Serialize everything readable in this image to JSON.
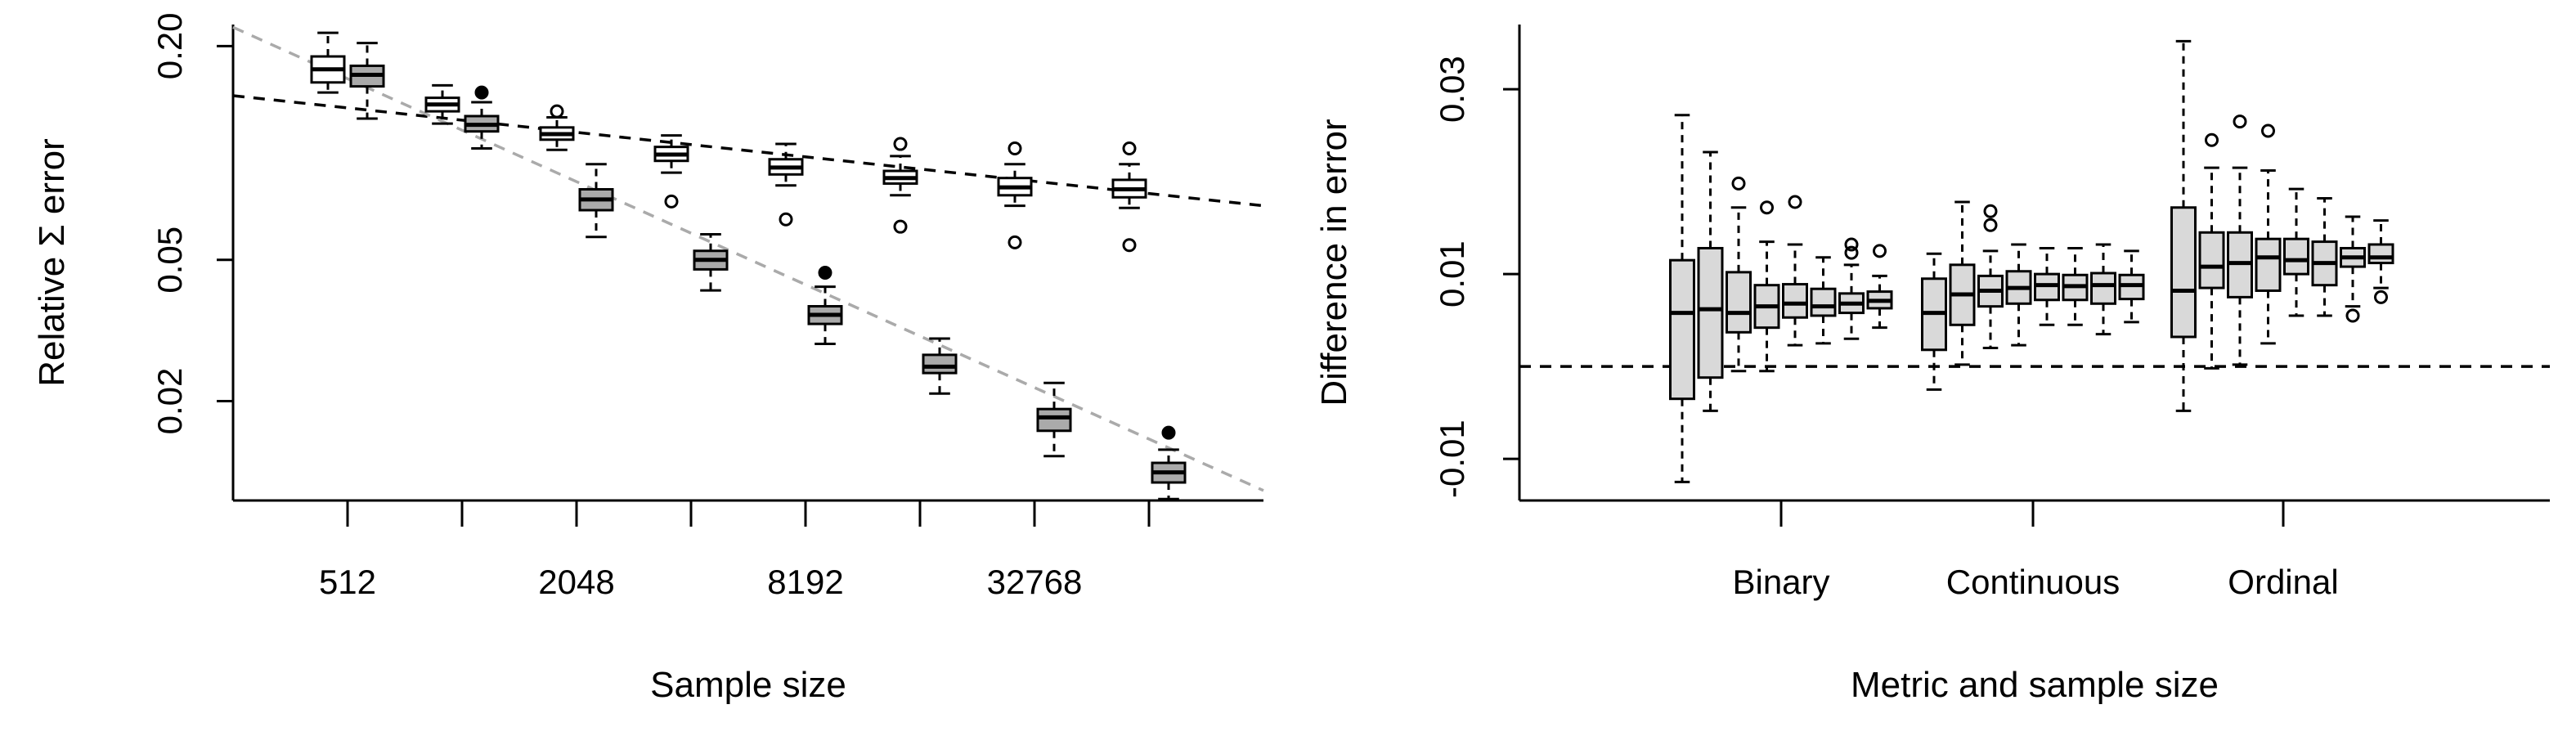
{
  "chart_data": [
    {
      "type": "box",
      "ylabel": "Relative Σ error",
      "xlabel": "Sample size",
      "y_scale": "log",
      "ylim": [
        0.0105,
        0.23
      ],
      "y_ticks": [
        0.02,
        0.05,
        0.2
      ],
      "y_tick_labels": [
        "0.02",
        "0.05",
        "0.20"
      ],
      "x_tick_labels": [
        "512",
        "2048",
        "8192",
        "32768"
      ],
      "x_tick_values": [
        512,
        2048,
        8192,
        32768
      ],
      "sample_sizes": [
        512,
        1024,
        2048,
        4096,
        8192,
        16384,
        32768,
        65536
      ],
      "trend_lines": [
        {
          "color": "#000000",
          "style": "dashed",
          "from": [
            256,
            0.145
          ],
          "to": [
            131072,
            0.071
          ]
        },
        {
          "color": "#aaaaaa",
          "style": "dashed",
          "from": [
            256,
            0.226
          ],
          "to": [
            131072,
            0.0112
          ]
        }
      ],
      "series": [
        {
          "fill": "#ffffff",
          "boxes": [
            {
              "wl": 0.148,
              "q1": 0.158,
              "med": 0.172,
              "q3": 0.187,
              "wh": 0.218,
              "out": []
            },
            {
              "wl": 0.121,
              "q1": 0.131,
              "med": 0.137,
              "q3": 0.143,
              "wh": 0.155,
              "out": []
            },
            {
              "wl": 0.102,
              "q1": 0.109,
              "med": 0.113,
              "q3": 0.118,
              "wh": 0.126,
              "out": [
                0.131
              ]
            },
            {
              "wl": 0.088,
              "q1": 0.095,
              "med": 0.099,
              "q3": 0.104,
              "wh": 0.112,
              "out": [
                0.073
              ]
            },
            {
              "wl": 0.081,
              "q1": 0.087,
              "med": 0.091,
              "q3": 0.096,
              "wh": 0.106,
              "out": [
                0.065
              ]
            },
            {
              "wl": 0.076,
              "q1": 0.082,
              "med": 0.085,
              "q3": 0.089,
              "wh": 0.098,
              "out": [
                0.106,
                0.062
              ]
            },
            {
              "wl": 0.071,
              "q1": 0.076,
              "med": 0.08,
              "q3": 0.085,
              "wh": 0.093,
              "out": [
                0.103,
                0.056
              ]
            },
            {
              "wl": 0.07,
              "q1": 0.075,
              "med": 0.079,
              "q3": 0.084,
              "wh": 0.093,
              "out": [
                0.103,
                0.055
              ]
            }
          ]
        },
        {
          "fill": "#aaaaaa",
          "boxes": [
            {
              "wl": 0.125,
              "q1": 0.154,
              "med": 0.166,
              "q3": 0.176,
              "wh": 0.204,
              "out": []
            },
            {
              "wl": 0.103,
              "q1": 0.115,
              "med": 0.12,
              "q3": 0.127,
              "wh": 0.139,
              "out": [
                0.148
              ]
            },
            {
              "wl": 0.058,
              "q1": 0.069,
              "med": 0.074,
              "q3": 0.079,
              "wh": 0.093,
              "out": []
            },
            {
              "wl": 0.041,
              "q1": 0.047,
              "med": 0.05,
              "q3": 0.053,
              "wh": 0.059,
              "out": []
            },
            {
              "wl": 0.029,
              "q1": 0.033,
              "med": 0.035,
              "q3": 0.037,
              "wh": 0.042,
              "out": [
                0.046
              ]
            },
            {
              "wl": 0.021,
              "q1": 0.024,
              "med": 0.025,
              "q3": 0.027,
              "wh": 0.03,
              "out": []
            },
            {
              "wl": 0.014,
              "q1": 0.0165,
              "med": 0.018,
              "q3": 0.019,
              "wh": 0.0225,
              "out": []
            },
            {
              "wl": 0.0106,
              "q1": 0.0118,
              "med": 0.0126,
              "q3": 0.0134,
              "wh": 0.0146,
              "out": [
                0.0163
              ]
            }
          ]
        }
      ]
    },
    {
      "type": "box",
      "ylabel": "Difference in error",
      "xlabel": "Metric and sample size",
      "ylim": [
        -0.0145,
        0.037
      ],
      "y_ticks": [
        -0.01,
        0.01,
        0.03
      ],
      "y_tick_labels": [
        "-0.01",
        "0.01",
        "0.03"
      ],
      "reference_line": 0.0,
      "groups": [
        {
          "name": "Binary",
          "fill": "#d9d9d9",
          "boxes": [
            {
              "wl": -0.0125,
              "q1": -0.0035,
              "med": 0.0058,
              "q3": 0.0115,
              "wh": 0.0272,
              "out": []
            },
            {
              "wl": -0.0048,
              "q1": -0.0012,
              "med": 0.0062,
              "q3": 0.0128,
              "wh": 0.0232,
              "out": []
            },
            {
              "wl": -0.0005,
              "q1": 0.0037,
              "med": 0.0058,
              "q3": 0.0102,
              "wh": 0.0172,
              "out": [
                0.0198
              ]
            },
            {
              "wl": -0.0005,
              "q1": 0.0042,
              "med": 0.0065,
              "q3": 0.0088,
              "wh": 0.0135,
              "out": [
                0.0172
              ]
            },
            {
              "wl": 0.0023,
              "q1": 0.0053,
              "med": 0.0068,
              "q3": 0.0089,
              "wh": 0.0132,
              "out": [
                0.0178
              ]
            },
            {
              "wl": 0.0025,
              "q1": 0.0055,
              "med": 0.0065,
              "q3": 0.0084,
              "wh": 0.0118,
              "out": []
            },
            {
              "wl": 0.003,
              "q1": 0.0058,
              "med": 0.0068,
              "q3": 0.0079,
              "wh": 0.011,
              "out": [
                0.0123,
                0.0132
              ]
            },
            {
              "wl": 0.0042,
              "q1": 0.0063,
              "med": 0.0071,
              "q3": 0.0081,
              "wh": 0.0098,
              "out": [
                0.0125
              ]
            }
          ]
        },
        {
          "name": "Continuous",
          "fill": "#d9d9d9",
          "boxes": [
            {
              "wl": -0.0025,
              "q1": 0.0018,
              "med": 0.0058,
              "q3": 0.0095,
              "wh": 0.0122,
              "out": []
            },
            {
              "wl": 0.0002,
              "q1": 0.0045,
              "med": 0.0078,
              "q3": 0.011,
              "wh": 0.0178,
              "out": []
            },
            {
              "wl": 0.002,
              "q1": 0.0065,
              "med": 0.0082,
              "q3": 0.0098,
              "wh": 0.0125,
              "out": [
                0.0153,
                0.0168
              ]
            },
            {
              "wl": 0.0023,
              "q1": 0.0068,
              "med": 0.0085,
              "q3": 0.0103,
              "wh": 0.0132,
              "out": []
            },
            {
              "wl": 0.0045,
              "q1": 0.0072,
              "med": 0.0088,
              "q3": 0.01,
              "wh": 0.0128,
              "out": []
            },
            {
              "wl": 0.0045,
              "q1": 0.0072,
              "med": 0.0087,
              "q3": 0.0099,
              "wh": 0.0128,
              "out": []
            },
            {
              "wl": 0.0035,
              "q1": 0.0068,
              "med": 0.0088,
              "q3": 0.0101,
              "wh": 0.0132,
              "out": []
            },
            {
              "wl": 0.0048,
              "q1": 0.0073,
              "med": 0.0088,
              "q3": 0.0099,
              "wh": 0.0125,
              "out": []
            }
          ]
        },
        {
          "name": "Ordinal",
          "fill": "#d9d9d9",
          "boxes": [
            {
              "wl": -0.0048,
              "q1": 0.0032,
              "med": 0.0082,
              "q3": 0.0172,
              "wh": 0.0352,
              "out": []
            },
            {
              "wl": -0.0002,
              "q1": 0.0085,
              "med": 0.0108,
              "q3": 0.0145,
              "wh": 0.0215,
              "out": [
                0.0245
              ]
            },
            {
              "wl": 0.0002,
              "q1": 0.0075,
              "med": 0.0112,
              "q3": 0.0145,
              "wh": 0.0215,
              "out": [
                0.0265
              ]
            },
            {
              "wl": 0.0025,
              "q1": 0.0082,
              "med": 0.0118,
              "q3": 0.0138,
              "wh": 0.0212,
              "out": [
                0.0255
              ]
            },
            {
              "wl": 0.0055,
              "q1": 0.01,
              "med": 0.0115,
              "q3": 0.0138,
              "wh": 0.0192,
              "out": []
            },
            {
              "wl": 0.0055,
              "q1": 0.0088,
              "med": 0.0112,
              "q3": 0.0135,
              "wh": 0.0182,
              "out": []
            },
            {
              "wl": 0.0065,
              "q1": 0.0108,
              "med": 0.0118,
              "q3": 0.0128,
              "wh": 0.0162,
              "out": [
                0.0055
              ]
            },
            {
              "wl": 0.0085,
              "q1": 0.0112,
              "med": 0.0118,
              "q3": 0.0132,
              "wh": 0.0158,
              "out": [
                0.0075
              ]
            }
          ]
        }
      ]
    }
  ]
}
